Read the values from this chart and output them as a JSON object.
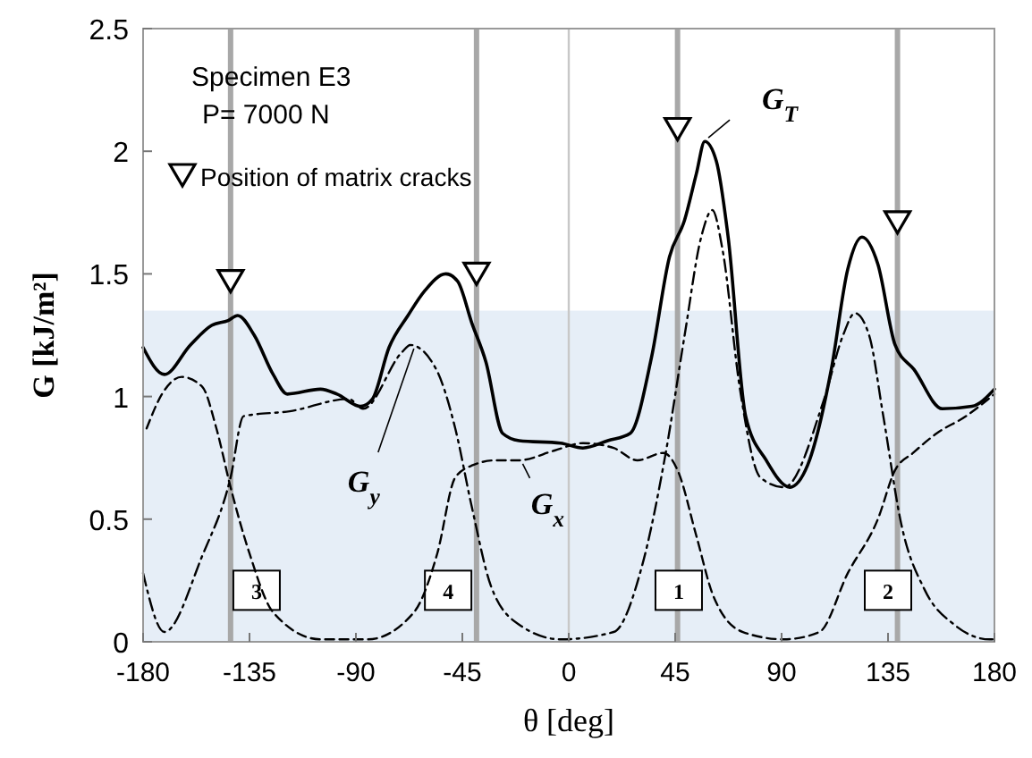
{
  "chart_data": {
    "type": "line",
    "xlabel": "θ [deg]",
    "ylabel": "G [kJ/m²]",
    "annotations": [
      "Specimen E3",
      "P= 7000 N",
      {
        "text": "3",
        "x": -132,
        "y": 0.21
      },
      {
        "text": "4",
        "x": -51,
        "y": 0.21
      },
      {
        "text": "1",
        "x": 46.5,
        "y": 0.21
      },
      {
        "text": "2",
        "x": 135,
        "y": 0.21
      }
    ],
    "xlim": [
      -180,
      180
    ],
    "xticks": [
      -180,
      -135,
      -90,
      -45,
      0,
      45,
      90,
      135,
      180
    ],
    "ylim": [
      0,
      2.5
    ],
    "yticks": [
      0,
      0.5,
      1,
      1.5,
      2,
      2.5
    ],
    "grid": false,
    "legend": "top left",
    "bands": [
      {
        "axis": "y",
        "from": 0,
        "to": 1.35,
        "color": "#e6eef7"
      }
    ],
    "ref_lines": [
      {
        "axis": "x",
        "value": -143,
        "color": "#a8a8a8"
      },
      {
        "axis": "x",
        "value": -39,
        "color": "#a8a8a8"
      },
      {
        "axis": "x",
        "value": 46,
        "color": "#a8a8a8"
      },
      {
        "axis": "x",
        "value": 139,
        "color": "#a8a8a8"
      }
    ],
    "series": [
      {
        "name": "G$_{T}$",
        "color": "#000000",
        "line_style": "solid",
        "marker": "none",
        "x": [
          -180,
          -171,
          -160,
          -151,
          -144,
          -140,
          -133,
          -125,
          -119,
          -105,
          -98,
          -88,
          -83,
          -76,
          -68,
          -61,
          -52,
          -47,
          -41,
          -35,
          -28,
          -21,
          -3.5,
          6,
          16.5,
          26,
          35,
          42.6,
          49,
          54,
          57.5,
          62.4,
          67.4,
          74.8,
          83.5,
          93.5,
          101,
          111,
          118,
          124,
          130.7,
          138,
          146,
          158,
          170.5,
          180
        ],
        "values": [
          1.2,
          1.09,
          1.21,
          1.29,
          1.31,
          1.33,
          1.25,
          1.09,
          1.01,
          1.03,
          1.01,
          0.96,
          0.99,
          1.2,
          1.33,
          1.43,
          1.5,
          1.47,
          1.3,
          1.14,
          0.85,
          0.82,
          0.81,
          0.79,
          0.82,
          0.85,
          1.16,
          1.57,
          1.72,
          1.91,
          2.04,
          1.96,
          1.65,
          0.92,
          0.74,
          0.63,
          0.72,
          1.11,
          1.52,
          1.65,
          1.54,
          1.21,
          1.11,
          0.95,
          0.96,
          1.03
        ]
      },
      {
        "name": "G$_{y}$",
        "color": "#000000",
        "line_style": "dashdot",
        "marker": "none",
        "x": [
          -180,
          -171,
          -155,
          -143,
          -137.5,
          -118,
          -93,
          -87,
          -70.6,
          -67,
          -56,
          -48,
          -41,
          -33,
          -21,
          -3.4,
          19,
          31,
          41,
          49,
          56,
          60.7,
          65,
          72.4,
          81,
          91,
          108,
          116,
          121,
          127,
          133,
          140.6,
          150.6,
          163,
          178,
          180
        ],
        "values": [
          0.28,
          0.04,
          0.35,
          0.67,
          0.92,
          0.94,
          0.99,
          0.95,
          1.18,
          1.21,
          1.11,
          0.87,
          0.55,
          0.23,
          0.07,
          0.01,
          0.04,
          0.31,
          0.77,
          1.25,
          1.65,
          1.76,
          1.6,
          1.03,
          0.67,
          0.63,
          0.99,
          1.25,
          1.34,
          1.25,
          0.92,
          0.48,
          0.21,
          0.07,
          0.01,
          0.01
        ]
      },
      {
        "name": "G$_{x}$",
        "color": "#000000",
        "line_style": "dashed",
        "marker": "none",
        "x": [
          -178.5,
          -172,
          -163.6,
          -155,
          -149,
          -143,
          -135,
          -125,
          -105,
          -85,
          -65.5,
          -55.6,
          -48,
          -40.6,
          -30.7,
          -21,
          -6,
          6,
          19,
          29,
          40,
          46,
          54,
          61,
          73.6,
          91,
          106,
          118,
          130.7,
          138,
          145.6,
          155.6,
          168,
          180
        ],
        "values": [
          0.87,
          1.01,
          1.08,
          1.04,
          0.87,
          0.63,
          0.36,
          0.12,
          0.01,
          0.01,
          0.12,
          0.36,
          0.67,
          0.72,
          0.74,
          0.74,
          0.78,
          0.81,
          0.79,
          0.74,
          0.77,
          0.7,
          0.43,
          0.19,
          0.04,
          0.01,
          0.04,
          0.28,
          0.5,
          0.7,
          0.77,
          0.85,
          0.92,
          1.01
        ]
      },
      {
        "name": "Position of matrix cracks",
        "type": "scatter",
        "color": "#000000",
        "marker": "triangle",
        "x": [
          -143,
          -39,
          46,
          139
        ],
        "values": [
          1.47,
          1.5,
          2.09,
          1.71
        ]
      }
    ]
  }
}
